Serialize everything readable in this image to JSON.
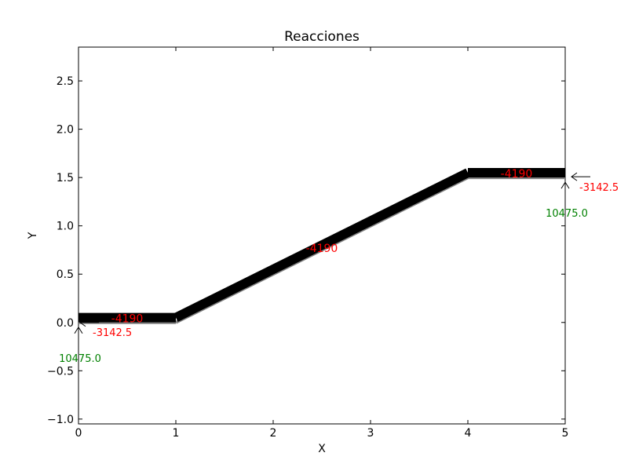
{
  "chart_data": {
    "type": "line",
    "title": "Reacciones",
    "xlabel": "X",
    "ylabel": "Y",
    "xlim": [
      0,
      5
    ],
    "ylim": [
      -1.05,
      2.85
    ],
    "xticks": [
      0,
      1,
      2,
      3,
      4,
      5
    ],
    "xtick_labels": [
      "0",
      "1",
      "2",
      "3",
      "4",
      "5"
    ],
    "yticks": [
      -1.0,
      -0.5,
      0.0,
      0.5,
      1.0,
      1.5,
      2.0,
      2.5
    ],
    "ytick_labels": [
      "−1.0",
      "−0.5",
      "0.0",
      "0.5",
      "1.0",
      "1.5",
      "2.0",
      "2.5"
    ],
    "grid": false,
    "structure": {
      "x": [
        0,
        1,
        4,
        5
      ],
      "y": [
        0,
        0,
        1.5,
        1.5
      ],
      "color": "#808080"
    },
    "members": [
      {
        "x1": 0,
        "y1": 0.05,
        "x2": 1,
        "y2": 0.05,
        "force": "-4190",
        "label_x": 0.5,
        "label_y": 0.05
      },
      {
        "x1": 1,
        "y1": 0.05,
        "x2": 4,
        "y2": 1.55,
        "force": "-4190",
        "label_x": 2.5,
        "label_y": 0.78
      },
      {
        "x1": 4,
        "y1": 1.55,
        "x2": 5,
        "y2": 1.55,
        "force": "-4190",
        "label_x": 4.5,
        "label_y": 1.55
      }
    ],
    "member_color": "#000000",
    "force_label_color": "#ff0000",
    "reactions": [
      {
        "node": [
          0,
          0
        ],
        "horizontal": {
          "value": "-3142.5",
          "color": "#ff0000"
        },
        "vertical": {
          "value": "10475.0",
          "color": "#008000"
        }
      },
      {
        "node": [
          5,
          1.5
        ],
        "horizontal": {
          "value": "-3142.5",
          "color": "#ff0000"
        },
        "vertical": {
          "value": "10475.0",
          "color": "#008000"
        }
      }
    ]
  }
}
